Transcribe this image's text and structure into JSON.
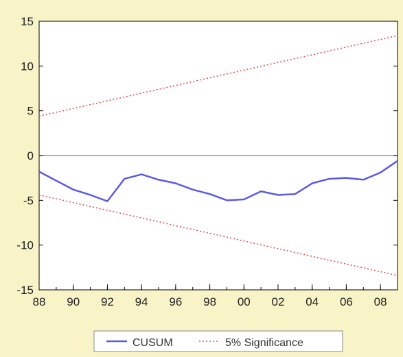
{
  "chart_data": {
    "type": "line",
    "title": "",
    "xlabel": "",
    "ylabel": "",
    "xlim": [
      1988,
      2009
    ],
    "ylim": [
      -15,
      15
    ],
    "x_ticks": [
      {
        "value": 1988,
        "label": "88"
      },
      {
        "value": 1990,
        "label": "90"
      },
      {
        "value": 1992,
        "label": "92"
      },
      {
        "value": 1994,
        "label": "94"
      },
      {
        "value": 1996,
        "label": "96"
      },
      {
        "value": 1998,
        "label": "98"
      },
      {
        "value": 2000,
        "label": "00"
      },
      {
        "value": 2002,
        "label": "02"
      },
      {
        "value": 2004,
        "label": "04"
      },
      {
        "value": 2006,
        "label": "06"
      },
      {
        "value": 2008,
        "label": "08"
      }
    ],
    "y_ticks": [
      {
        "value": 15,
        "label": "15"
      },
      {
        "value": 10,
        "label": "10"
      },
      {
        "value": 5,
        "label": "5"
      },
      {
        "value": 0,
        "label": "0"
      },
      {
        "value": -5,
        "label": "-5"
      },
      {
        "value": -10,
        "label": "-10"
      },
      {
        "value": -15,
        "label": "-15"
      }
    ],
    "zero_line": 0,
    "grid": false,
    "legend_position": "bottom-center",
    "series": [
      {
        "name": "CUSUM",
        "style": "solid",
        "color": "#5a5ae6",
        "x": [
          1988,
          1989,
          1990,
          1991,
          1992,
          1993,
          1994,
          1995,
          1996,
          1997,
          1998,
          1999,
          2000,
          2001,
          2002,
          2003,
          2004,
          2005,
          2006,
          2007,
          2008,
          2009
        ],
        "values": [
          -1.8,
          -2.8,
          -3.8,
          -4.4,
          -5.1,
          -2.6,
          -2.1,
          -2.7,
          -3.1,
          -3.8,
          -4.3,
          -5.0,
          -4.9,
          -4.0,
          -4.4,
          -4.3,
          -3.1,
          -2.6,
          -2.5,
          -2.7,
          -1.9,
          -0.6
        ]
      },
      {
        "name": "5% Significance",
        "style": "dotted",
        "color": "#e05050",
        "x": [
          1988,
          2009
        ],
        "values": [
          4.4,
          13.4
        ]
      },
      {
        "name": "",
        "style": "dotted",
        "color": "#e05050",
        "x": [
          1988,
          2009
        ],
        "values": [
          -4.4,
          -13.4
        ]
      }
    ]
  },
  "legend": {
    "items": [
      {
        "label": "CUSUM",
        "style": "solid",
        "color": "#5a5ae6"
      },
      {
        "label": "5% Significance",
        "style": "dotted",
        "color": "#e05050"
      }
    ]
  }
}
